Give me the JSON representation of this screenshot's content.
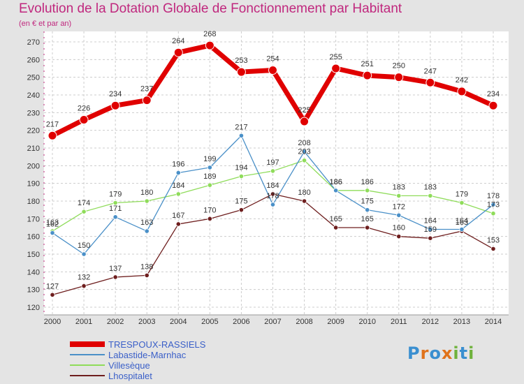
{
  "header": {
    "title": "Evolution de la Dotation Globale de Fonctionnement par Habitant",
    "subtitle": "(en € et par an)"
  },
  "logo": {
    "text": "Proxiti",
    "colors": [
      "#3a8fd0",
      "#e0721a",
      "#3a8fd0",
      "#e0721a",
      "#6fb23c",
      "#3a8fd0",
      "#6fb23c"
    ]
  },
  "colors": {
    "background": "#e4e4e4",
    "plot_background": "#ffffff",
    "title": "#c0287e",
    "grid": "#cccccc",
    "axis_accent": "#c0287e"
  },
  "chart_data": {
    "type": "line",
    "title": "Evolution de la Dotation Globale de Fonctionnement par Habitant",
    "subtitle": "(en € et par an)",
    "xlabel": "",
    "ylabel": "",
    "x": [
      "2000",
      "2001",
      "2002",
      "2003",
      "2004",
      "2005",
      "2006",
      "2007",
      "2008",
      "2009",
      "2010",
      "2011",
      "2012",
      "2013",
      "2014"
    ],
    "ylim": [
      120,
      270
    ],
    "yticks": [
      120,
      130,
      140,
      150,
      160,
      170,
      180,
      190,
      200,
      210,
      220,
      230,
      240,
      250,
      260,
      270
    ],
    "grid": true,
    "legend_position": "bottom-left",
    "series": [
      {
        "name": "TRESPOUX-RASSIELS",
        "color": "#e00000",
        "emphasis": true,
        "values": [
          217,
          226,
          234,
          237,
          264,
          268,
          253,
          254,
          225,
          255,
          251,
          250,
          247,
          242,
          234
        ],
        "labels": [
          "217",
          "226",
          "234",
          "237",
          "264",
          "268",
          "253",
          "254",
          "225",
          "255",
          "251",
          "250",
          "247",
          "242",
          "234"
        ]
      },
      {
        "name": "Labastide-Marnhac",
        "color": "#4a90c8",
        "values": [
          162,
          150,
          171,
          163,
          196,
          199,
          217,
          178,
          208,
          186,
          175,
          172,
          164,
          164,
          178
        ],
        "labels": [
          "162",
          "150",
          "171",
          "163",
          "196",
          "199",
          "217",
          "178",
          "208",
          "186",
          "175",
          "172",
          "164",
          "164",
          "178"
        ]
      },
      {
        "name": "Villesèque",
        "color": "#8fdc5a",
        "values": [
          163,
          174,
          179,
          180,
          184,
          189,
          194,
          197,
          203,
          186,
          186,
          183,
          183,
          179,
          173
        ],
        "labels": [
          "163",
          "174",
          "179",
          "180",
          "184",
          "189",
          "194",
          "197",
          "203",
          "186",
          "186",
          "183",
          "183",
          "179",
          "173"
        ]
      },
      {
        "name": "Lhospitalet",
        "color": "#6e1e1e",
        "values": [
          127,
          132,
          137,
          138,
          167,
          170,
          175,
          184,
          180,
          165,
          165,
          160,
          159,
          163,
          153
        ],
        "labels": [
          "127",
          "132",
          "137",
          "138",
          "167",
          "170",
          "175",
          "184",
          "180",
          "165",
          "165",
          "160",
          "159",
          "163",
          "153"
        ]
      }
    ]
  }
}
